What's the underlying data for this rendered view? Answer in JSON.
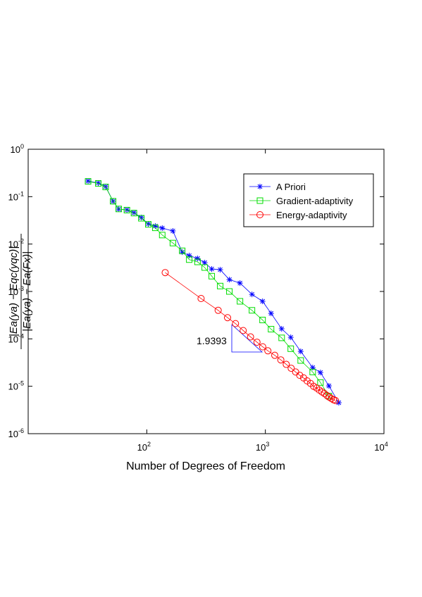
{
  "chart_data": {
    "type": "line",
    "log_x": true,
    "log_y": true,
    "x_label": "Number of Degrees of Freedom",
    "y_label_numerator": "|Ea(ya) − Eqc(yqc)|",
    "y_label_denominator": "|Ea(ya) − Ea(Fx)|",
    "annotation": "1.9393",
    "xlim": [
      10,
      10000
    ],
    "ylim": [
      1e-06,
      1
    ],
    "xticks": [
      {
        "value": 100,
        "label": "10",
        "exponent": "2"
      },
      {
        "value": 1000,
        "label": "10",
        "exponent": "3"
      },
      {
        "value": 10000,
        "label": "10",
        "exponent": "4"
      }
    ],
    "yticks": [
      {
        "value": 1e-06,
        "label": "10",
        "exponent": "-6"
      },
      {
        "value": 1e-05,
        "label": "10",
        "exponent": "-5"
      },
      {
        "value": 0.0001,
        "label": "10",
        "exponent": "-4"
      },
      {
        "value": 0.001,
        "label": "10",
        "exponent": "-3"
      },
      {
        "value": 0.01,
        "label": "10",
        "exponent": "-2"
      },
      {
        "value": 0.1,
        "label": "10",
        "exponent": "-1"
      },
      {
        "value": 1,
        "label": "10",
        "exponent": "0"
      }
    ],
    "legend_position": "upper right",
    "series": [
      {
        "name": "A Priori",
        "color": "#0000ff",
        "marker": "star",
        "x": [
          32,
          39,
          45,
          52,
          58,
          68,
          78,
          90,
          103,
          118,
          135,
          166,
          199,
          228,
          268,
          308,
          353,
          416,
          497,
          611,
          771,
          947,
          1117,
          1372,
          1637,
          1986,
          2506,
          2913,
          3434,
          4160
        ],
        "values": [
          0.214,
          0.194,
          0.163,
          0.08,
          0.0546,
          0.0527,
          0.0459,
          0.0362,
          0.0266,
          0.024,
          0.0217,
          0.0189,
          0.00677,
          0.00571,
          0.00497,
          0.00405,
          0.00298,
          0.00288,
          0.00178,
          0.0015,
          0.00087,
          0.00062,
          0.000345,
          0.000163,
          0.000108,
          5.44e-05,
          2.48e-05,
          1.95e-05,
          1.02e-05,
          4.5e-06
        ]
      },
      {
        "name": "Gradient-adaptivity",
        "color": "#00dd00",
        "marker": "square",
        "x": [
          32,
          39,
          45,
          52,
          58,
          68,
          78,
          90,
          103,
          118,
          135,
          166,
          199,
          228,
          268,
          308,
          353,
          416,
          497,
          611,
          771,
          947,
          1117,
          1372,
          1637,
          1986,
          2506,
          2913,
          3434
        ],
        "values": [
          0.21,
          0.19,
          0.16,
          0.08,
          0.055,
          0.052,
          0.045,
          0.035,
          0.026,
          0.022,
          0.0155,
          0.0105,
          0.0072,
          0.0047,
          0.0042,
          0.0032,
          0.0021,
          0.0013,
          0.001,
          0.00062,
          0.0004,
          0.00025,
          0.00016,
          0.000105,
          6.2e-05,
          3.5e-05,
          2e-05,
          1.2e-05,
          6.2e-06
        ]
      },
      {
        "name": "Energy-adaptivity",
        "color": "#ff0000",
        "marker": "circle",
        "x": [
          143,
          287,
          400,
          480,
          560,
          650,
          750,
          850,
          950,
          1050,
          1200,
          1350,
          1500,
          1650,
          1800,
          1950,
          2100,
          2250,
          2400,
          2550,
          2700,
          2850,
          3000,
          3150,
          3300,
          3450,
          3600,
          3750,
          3900
        ],
        "values": [
          0.0025,
          0.00071,
          0.0004,
          0.00028,
          0.00021,
          0.00015,
          0.00011,
          8.5e-05,
          6.8e-05,
          5.6e-05,
          4.5e-05,
          3.6e-05,
          2.9e-05,
          2.4e-05,
          2e-05,
          1.7e-05,
          1.5e-05,
          1.3e-05,
          1.15e-05,
          1e-05,
          9.2e-06,
          8.3e-06,
          7.6e-06,
          7e-06,
          6.4e-06,
          5.9e-06,
          5.5e-06,
          5.2e-06,
          5e-06
        ]
      }
    ]
  }
}
